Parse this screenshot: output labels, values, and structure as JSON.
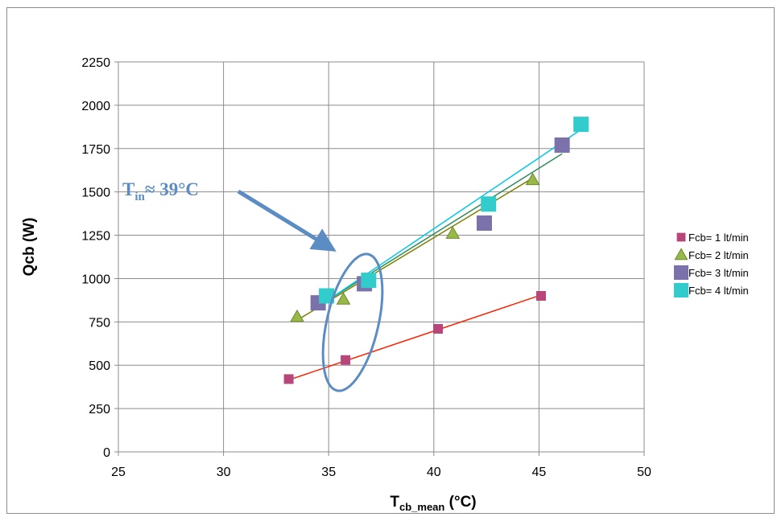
{
  "chart_data": {
    "type": "scatter",
    "xlabel": {
      "main": "T",
      "sub": "cb_mean",
      "unit": " (°C)"
    },
    "ylabel": "Qcb (W)",
    "xlim": [
      25,
      50
    ],
    "ylim": [
      0,
      2250
    ],
    "xticks": [
      25,
      30,
      35,
      40,
      45,
      50
    ],
    "yticks": [
      0,
      250,
      500,
      750,
      1000,
      1250,
      1500,
      1750,
      2000,
      2250
    ],
    "grid": true,
    "legend_position": "right",
    "series": [
      {
        "name": "Fcb= 1 lt/min",
        "marker": "square-small",
        "color": "#b8467a",
        "line_color": "#ff2000",
        "points": [
          [
            33.1,
            420
          ],
          [
            35.8,
            530
          ],
          [
            40.2,
            710
          ],
          [
            45.1,
            900
          ]
        ],
        "trend": [
          [
            33.1,
            415
          ],
          [
            45.1,
            905
          ]
        ]
      },
      {
        "name": "Fcb= 2 lt/min",
        "marker": "triangle",
        "color": "#98b848",
        "line_color": "#7f7f00",
        "points": [
          [
            33.5,
            780
          ],
          [
            35.7,
            880
          ],
          [
            40.9,
            1260
          ],
          [
            44.7,
            1570
          ]
        ],
        "trend": [
          [
            33.5,
            760
          ],
          [
            44.7,
            1580
          ]
        ]
      },
      {
        "name": "Fcb= 3 lt/min",
        "marker": "square",
        "color": "#7b72ab",
        "line_color": "#2e8b57",
        "points": [
          [
            34.5,
            860
          ],
          [
            36.7,
            970
          ],
          [
            42.4,
            1320
          ],
          [
            46.1,
            1770
          ]
        ],
        "trend": [
          [
            34.5,
            840
          ],
          [
            46.1,
            1720
          ]
        ]
      },
      {
        "name": "Fcb= 4 lt/min",
        "marker": "square",
        "color": "#33cccc",
        "line_color": "#00c8e8",
        "points": [
          [
            34.9,
            900
          ],
          [
            36.9,
            990
          ],
          [
            42.6,
            1430
          ],
          [
            47.0,
            1890
          ]
        ],
        "trend": [
          [
            34.9,
            870
          ],
          [
            47.0,
            1860
          ]
        ]
      }
    ],
    "annotation": {
      "main": "T",
      "sub": "in",
      "rest": "≈ 39°C",
      "color": "#5b8cc4"
    }
  }
}
